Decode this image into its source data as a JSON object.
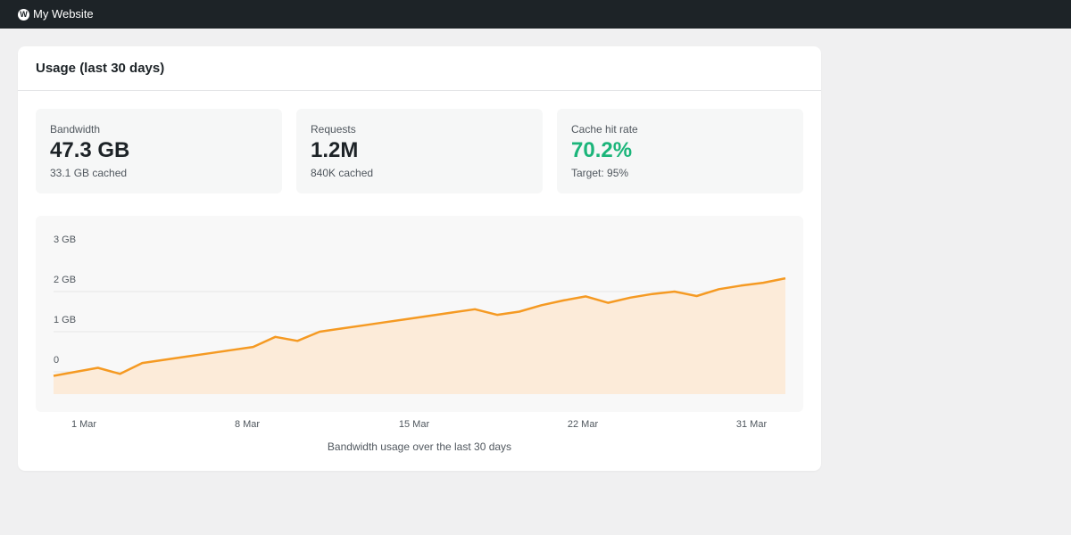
{
  "topbar": {
    "logo_letter": "W",
    "site_name": "My Website"
  },
  "card": {
    "title": "Usage (last 30 days)"
  },
  "stats": [
    {
      "label": "Bandwidth",
      "value": "47.3 GB",
      "sub": "33.1 GB cached"
    },
    {
      "label": "Requests",
      "value": "1.2M",
      "sub": "840K cached"
    },
    {
      "label": "Cache hit rate",
      "value": "70.2%",
      "sub": "Target: 95%"
    }
  ],
  "colors": {
    "line": "#f59a23",
    "area": "#fcebd9",
    "good": "#1bb57a"
  },
  "chart_data": {
    "type": "area",
    "caption": "Bandwidth usage over the last 30 days",
    "y_ticks": [
      "3 GB",
      "2 GB",
      "1 GB",
      "0"
    ],
    "ylim": [
      0,
      3
    ],
    "x_tick_labels": [
      "1 Mar",
      "8 Mar",
      "15 Mar",
      "22 Mar",
      "31 Mar"
    ],
    "series": [
      {
        "values": [
          -0.1,
          0,
          0.1,
          -0.05,
          0.22,
          0.3,
          0.38,
          0.46,
          0.54,
          0.62,
          0.87,
          0.77,
          1.0,
          1.08,
          1.16,
          1.24,
          1.32,
          1.4,
          1.48,
          1.56,
          1.42,
          1.5,
          1.66,
          1.78,
          1.88,
          1.72,
          1.85,
          1.94,
          2.0,
          1.89,
          2.06,
          2.15,
          2.22,
          2.33
        ]
      }
    ],
    "grid": true
  }
}
